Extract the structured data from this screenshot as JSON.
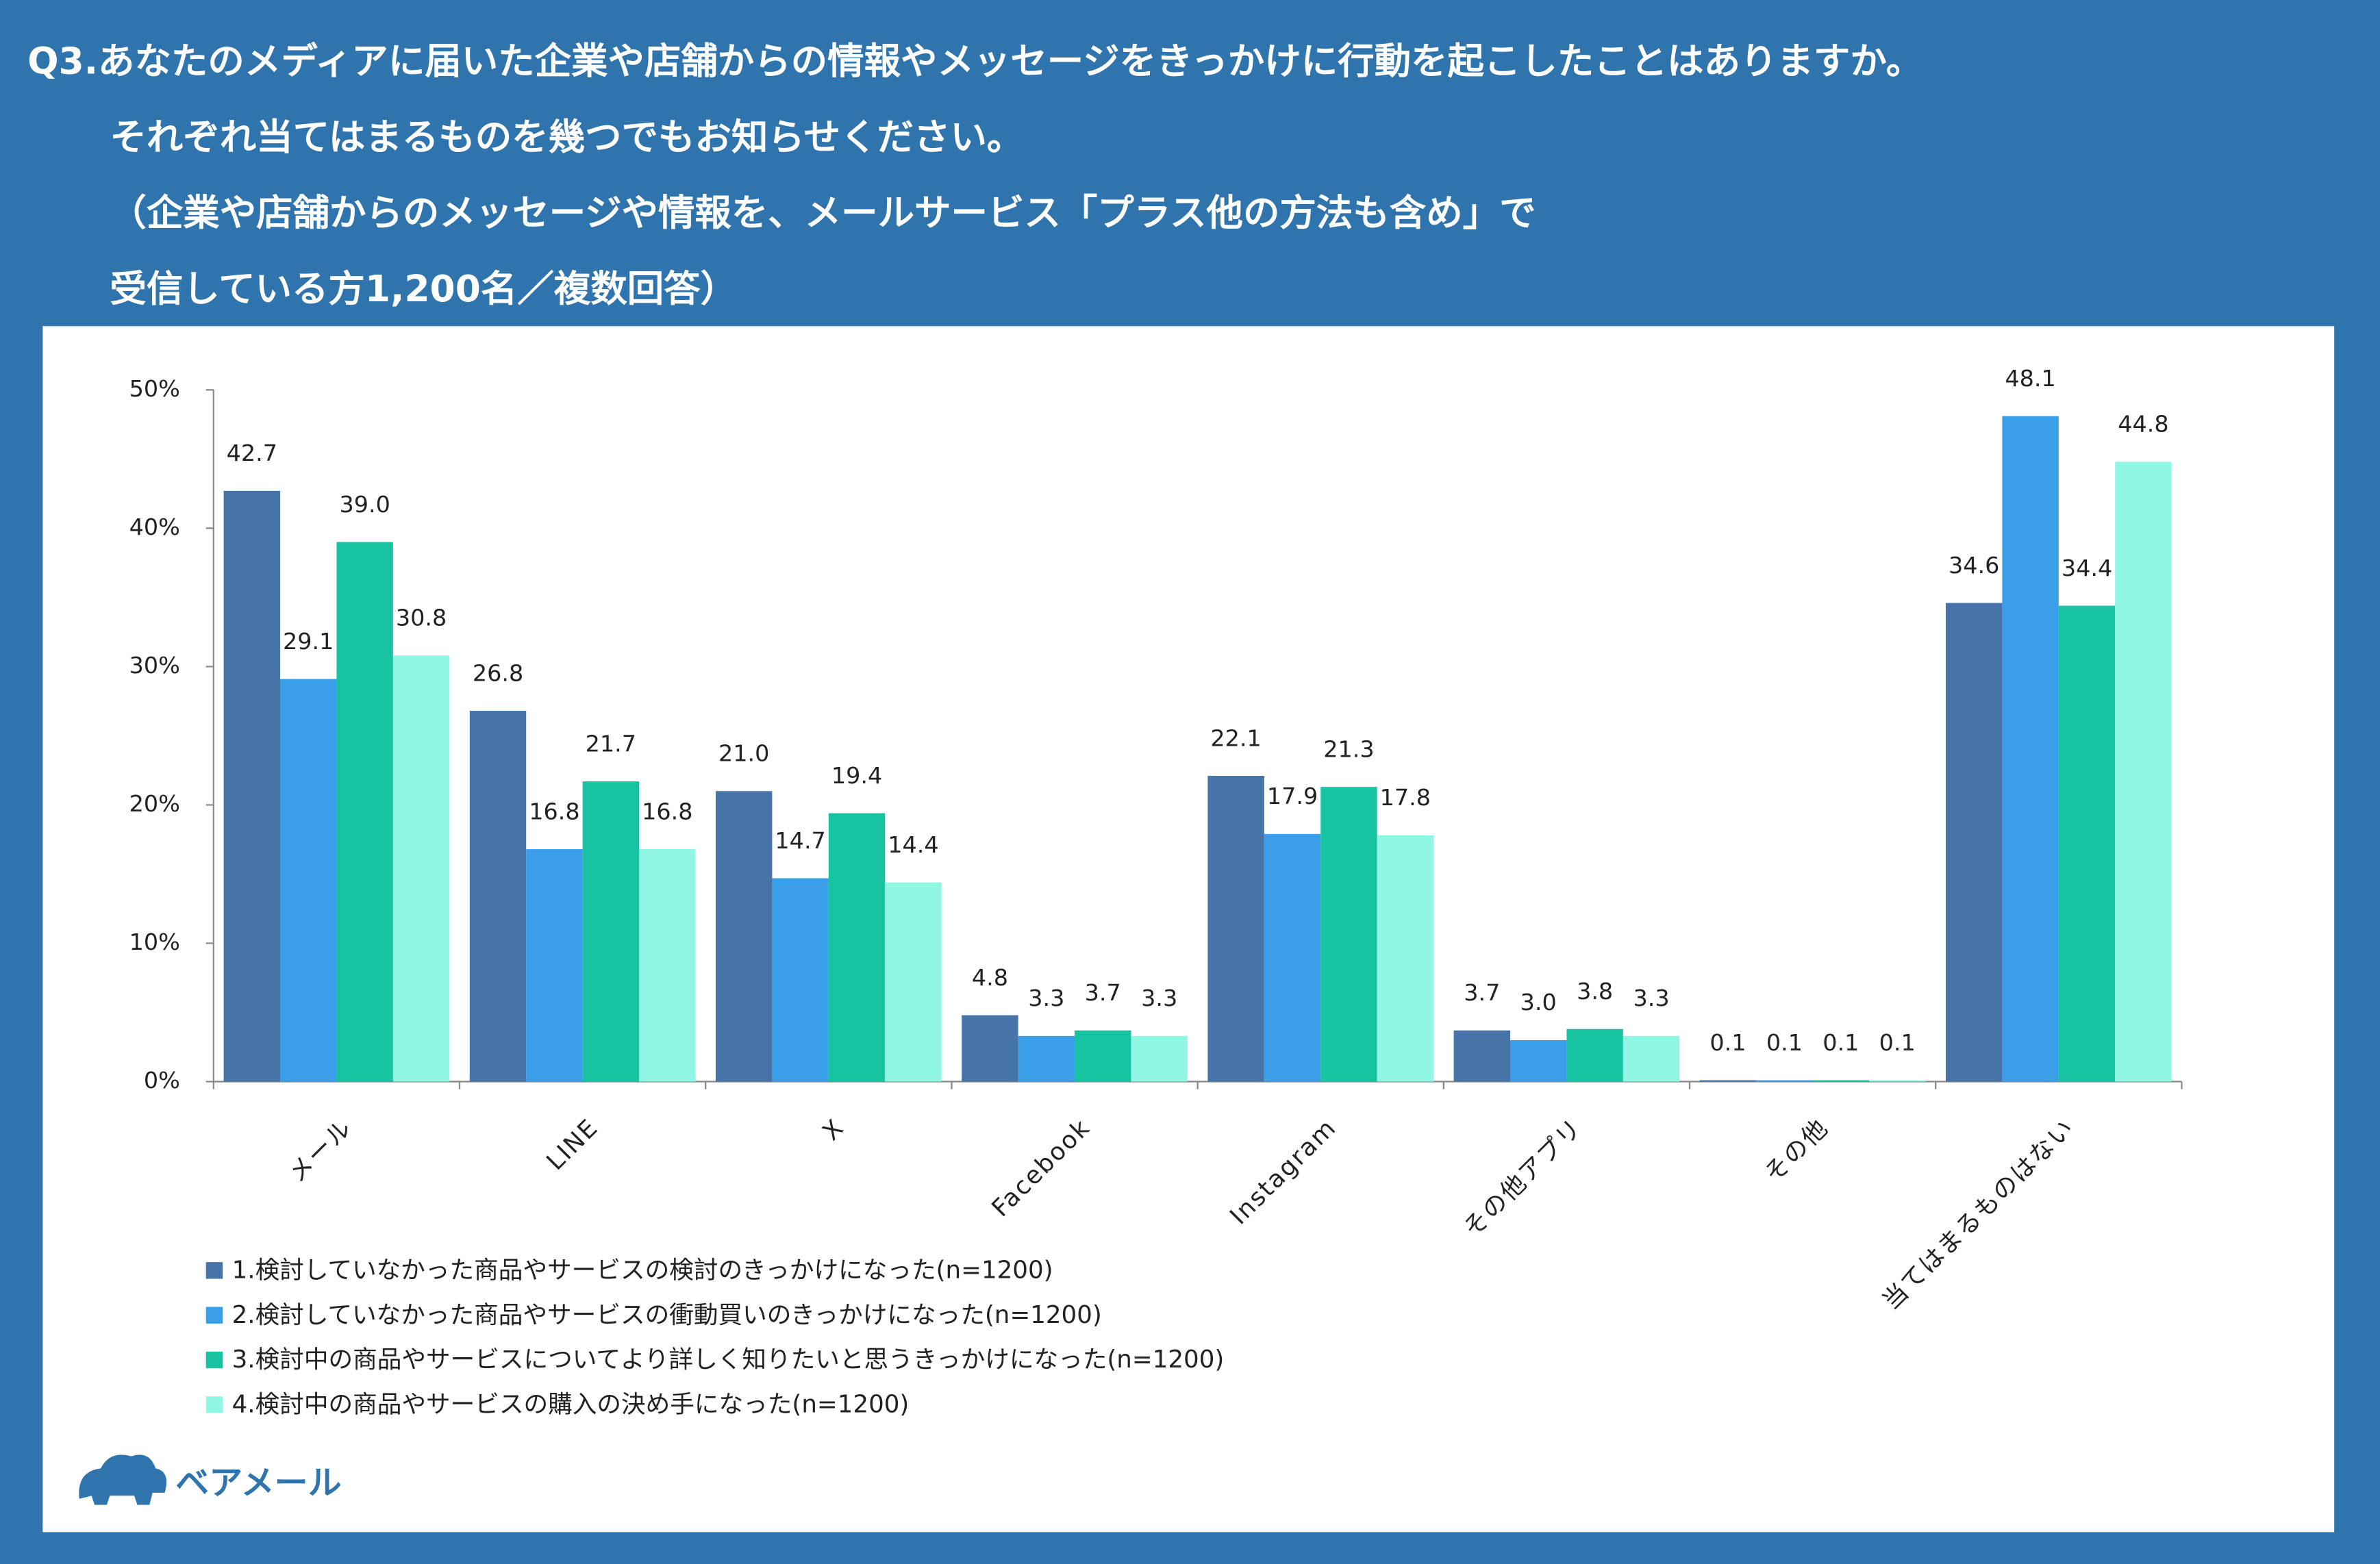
{
  "chart_data": {
    "type": "bar",
    "title": [
      "Q3.あなたのメディアに届いた企業や店舗からの情報やメッセージをきっかけに行動を起こしたことはありますか。",
      "それぞれ当てはまるものを幾つでもお知らせください。",
      "（企業や店舗からのメッセージや情報を、メールサービス「プラス他の方法も含め」で",
      "受信している方1,200名／複数回答）"
    ],
    "categories": [
      "メール",
      "LINE",
      "X",
      "Facebook",
      "Instagram",
      "その他アプリ",
      "その他",
      "当てはまるものはない"
    ],
    "series": [
      {
        "name": "1.検討していなかった商品やサービスの検討のきっかけになった(n=1200)",
        "color": "#4674a8",
        "values": [
          42.7,
          26.8,
          21,
          4.8,
          22.1,
          3.7,
          0.1,
          34.6
        ],
        "value_labels": [
          "42.7",
          "26.8",
          "21.0",
          "4.8",
          "22.1",
          "3.7",
          "0.1",
          "34.6"
        ]
      },
      {
        "name": "2.検討していなかった商品やサービスの衝動買いのきっかけになった(n=1200)",
        "color": "#3a9ee8",
        "values": [
          29.1,
          16.8,
          14.7,
          3.3,
          17.9,
          3,
          0.1,
          48.1
        ],
        "value_labels": [
          "29.1",
          "16.8",
          "14.7",
          "3.3",
          "17.9",
          "3.0",
          "0.1",
          "48.1"
        ]
      },
      {
        "name": "3.検討中の商品やサービスについてより詳しく知りたいと思うきっかけになった(n=1200)",
        "color": "#17c3a1",
        "values": [
          39,
          21.7,
          19.4,
          3.7,
          21.3,
          3.8,
          0.1,
          34.4
        ],
        "value_labels": [
          "39.0",
          "21.7",
          "19.4",
          "3.7",
          "21.3",
          "3.8",
          "0.1",
          "34.4"
        ]
      },
      {
        "name": "4.検討中の商品やサービスの購入の決め手になった(n=1200)",
        "color": "#8ff7e4",
        "values": [
          30.8,
          16.8,
          14.4,
          3.3,
          17.8,
          3.3,
          0.1,
          44.8
        ],
        "value_labels": [
          "30.8",
          "16.8",
          "14.4",
          "3.3",
          "17.8",
          "3.3",
          "0.1",
          "44.8"
        ]
      }
    ],
    "ylim": [
      0,
      50
    ],
    "yticks": [
      {
        "value": 0,
        "label": "0%"
      },
      {
        "value": 10,
        "label": "10%"
      },
      {
        "value": 20,
        "label": "20%"
      },
      {
        "value": 30,
        "label": "30%"
      },
      {
        "value": 40,
        "label": "40%"
      },
      {
        "value": 50,
        "label": "50%"
      }
    ],
    "grid": false,
    "logo": "ベアメール"
  }
}
